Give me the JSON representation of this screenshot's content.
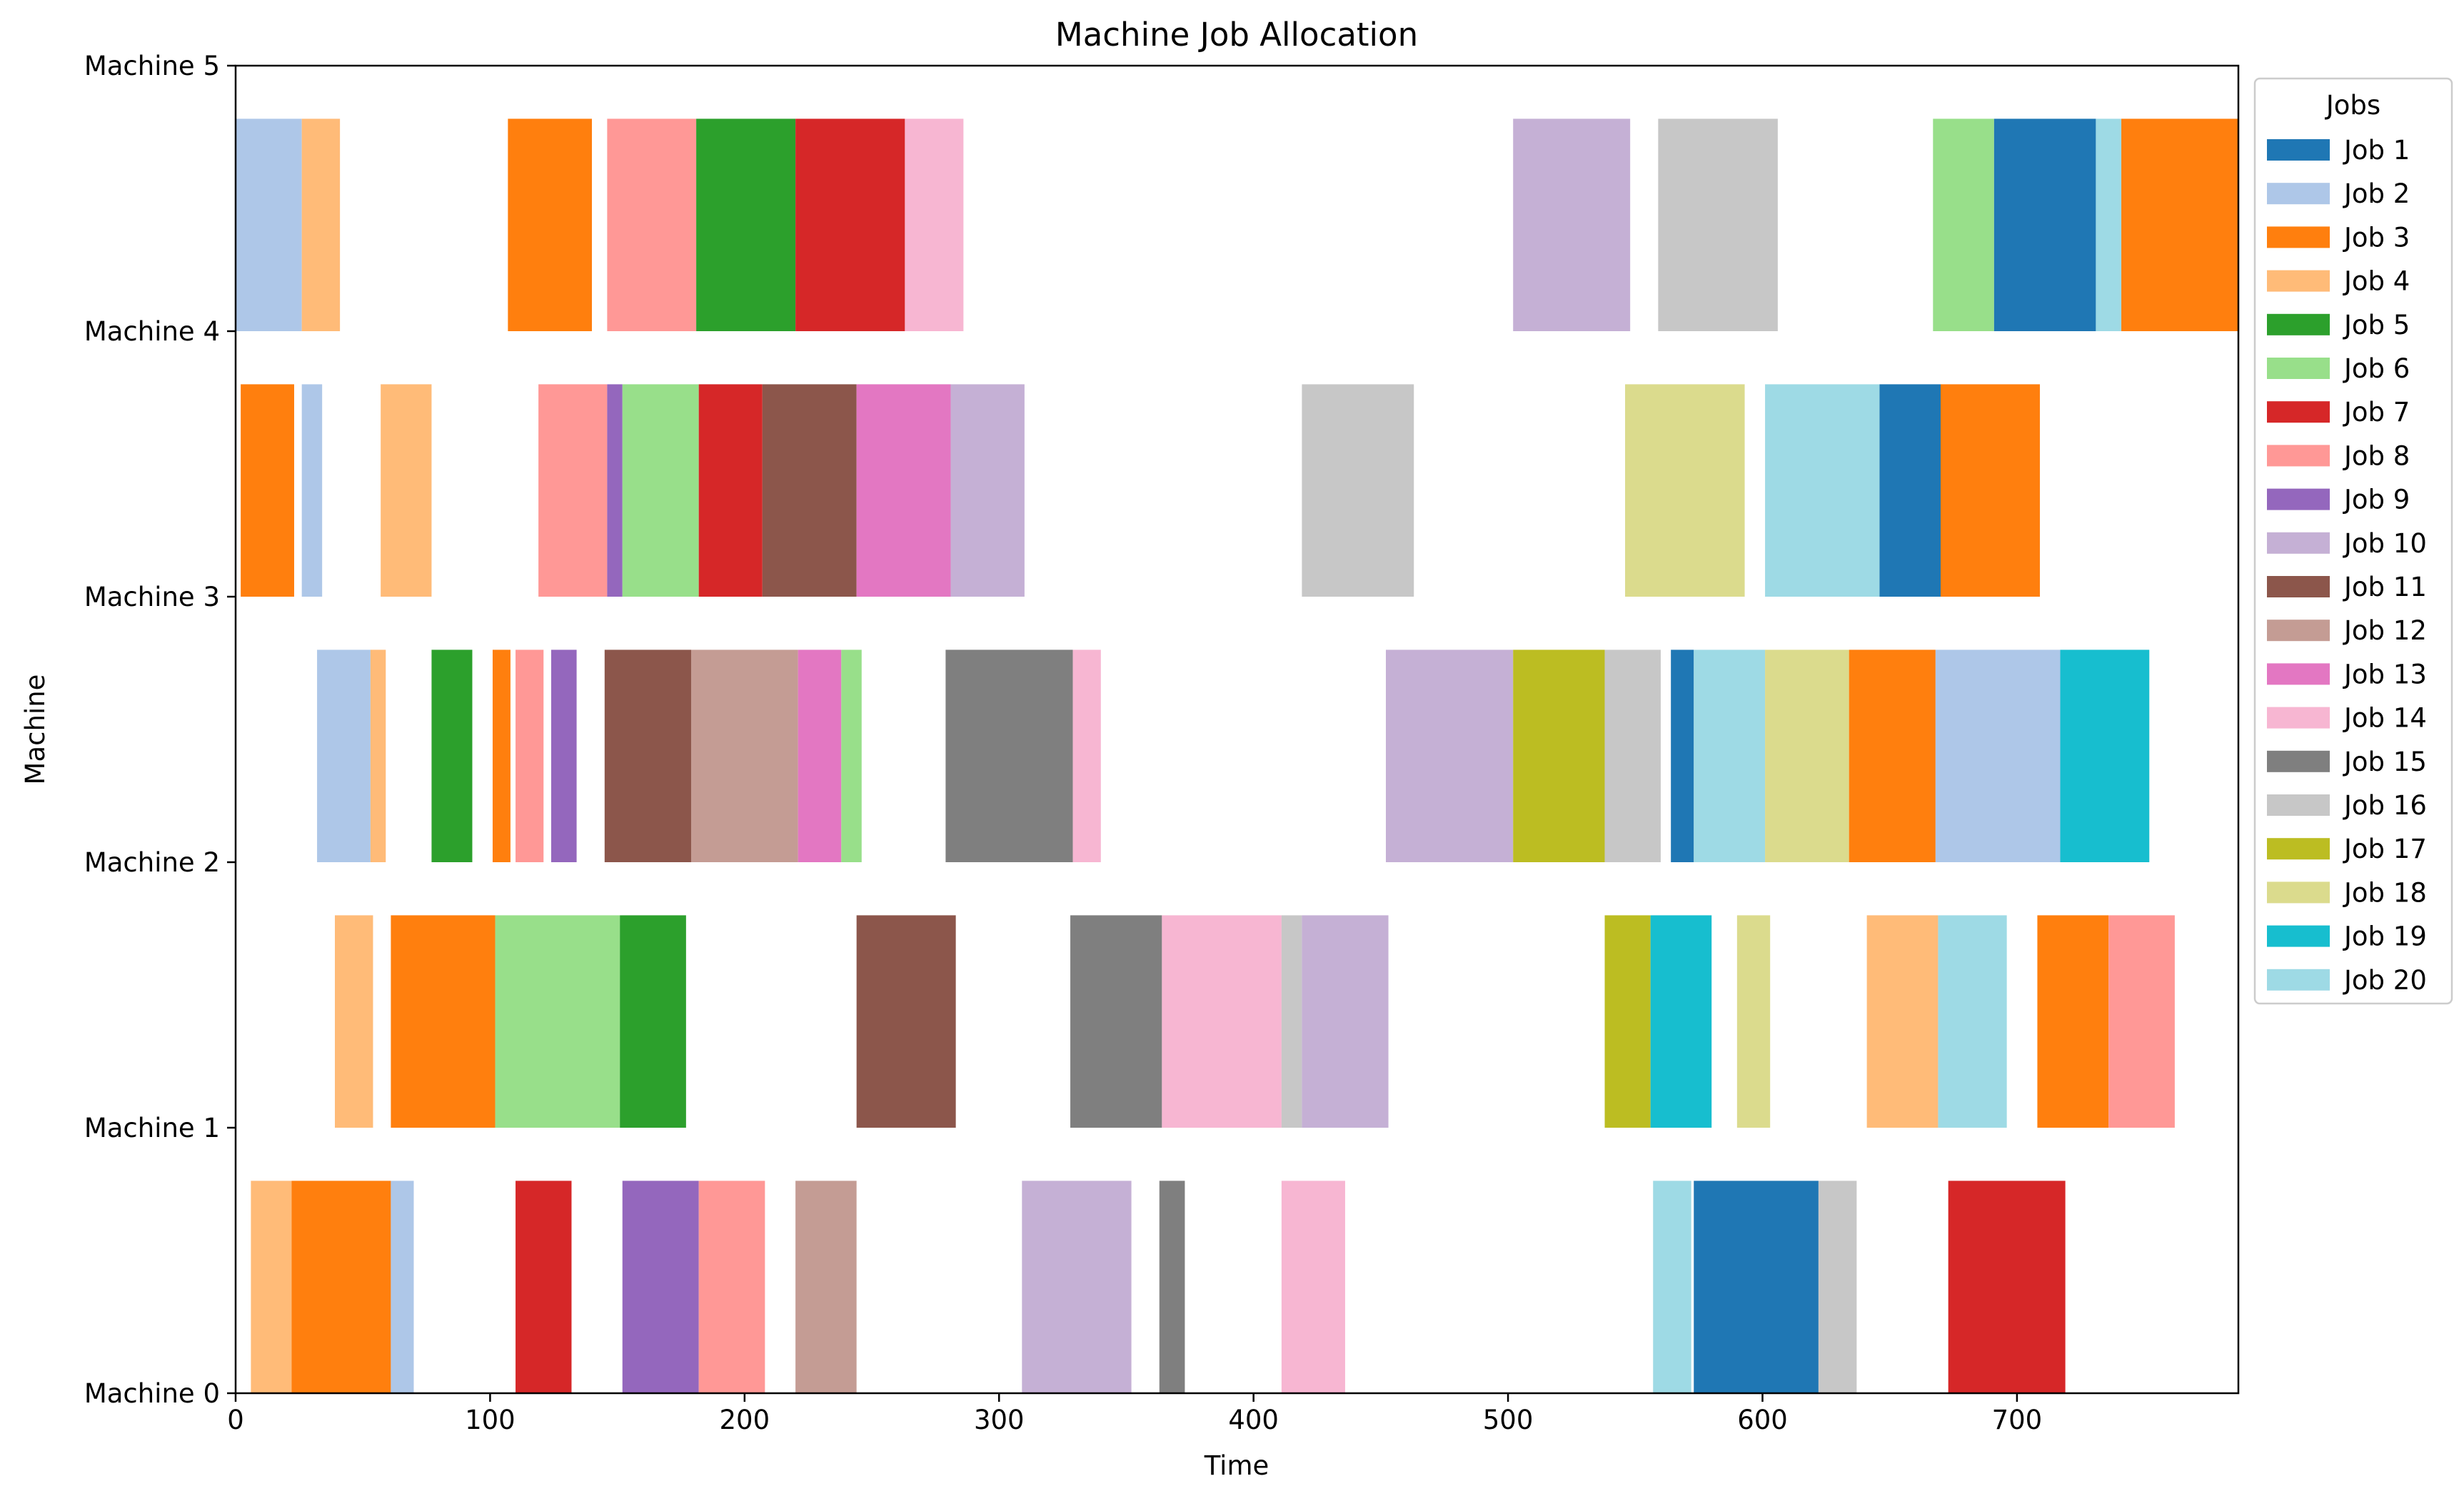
{
  "chart_data": {
    "type": "gantt",
    "title": "Machine Job Allocation",
    "xlabel": "Time",
    "ylabel": "Machine",
    "xlim": [
      0,
      787
    ],
    "ylim": [
      0,
      5
    ],
    "x_ticks": [
      0,
      100,
      200,
      300,
      400,
      500,
      600,
      700
    ],
    "y_ticks": [
      {
        "value": 0,
        "label": "Machine 0"
      },
      {
        "value": 1,
        "label": "Machine 1"
      },
      {
        "value": 2,
        "label": "Machine 2"
      },
      {
        "value": 3,
        "label": "Machine 3"
      },
      {
        "value": 4,
        "label": "Machine 4"
      },
      {
        "value": 5,
        "label": "Machine 5"
      }
    ],
    "grid": false,
    "legend": {
      "title": "Jobs",
      "placement": "outside-right-top"
    },
    "jobs": [
      {
        "id": 1,
        "name": "Job 1",
        "color": "#1f77b4"
      },
      {
        "id": 2,
        "name": "Job 2",
        "color": "#aec7e8"
      },
      {
        "id": 3,
        "name": "Job 3",
        "color": "#ff7f0e"
      },
      {
        "id": 4,
        "name": "Job 4",
        "color": "#ffbb78"
      },
      {
        "id": 5,
        "name": "Job 5",
        "color": "#2ca02c"
      },
      {
        "id": 6,
        "name": "Job 6",
        "color": "#98df8a"
      },
      {
        "id": 7,
        "name": "Job 7",
        "color": "#d62728"
      },
      {
        "id": 8,
        "name": "Job 8",
        "color": "#ff9896"
      },
      {
        "id": 9,
        "name": "Job 9",
        "color": "#9467bd"
      },
      {
        "id": 10,
        "name": "Job 10",
        "color": "#c5b0d5"
      },
      {
        "id": 11,
        "name": "Job 11",
        "color": "#8c564b"
      },
      {
        "id": 12,
        "name": "Job 12",
        "color": "#c49c94"
      },
      {
        "id": 13,
        "name": "Job 13",
        "color": "#e377c2"
      },
      {
        "id": 14,
        "name": "Job 14",
        "color": "#f7b6d2"
      },
      {
        "id": 15,
        "name": "Job 15",
        "color": "#7f7f7f"
      },
      {
        "id": 16,
        "name": "Job 16",
        "color": "#c7c7c7"
      },
      {
        "id": 17,
        "name": "Job 17",
        "color": "#bcbd22"
      },
      {
        "id": 18,
        "name": "Job 18",
        "color": "#dbdb8d"
      },
      {
        "id": 19,
        "name": "Job 19",
        "color": "#17becf"
      },
      {
        "id": 20,
        "name": "Job 20",
        "color": "#9edae5"
      }
    ],
    "machines": [
      {
        "machine": 0,
        "tasks": [
          {
            "job": 4,
            "start": 6,
            "end": 22
          },
          {
            "job": 3,
            "start": 22,
            "end": 61
          },
          {
            "job": 2,
            "start": 61,
            "end": 70
          },
          {
            "job": 7,
            "start": 110,
            "end": 132
          },
          {
            "job": 9,
            "start": 152,
            "end": 182
          },
          {
            "job": 8,
            "start": 182,
            "end": 208
          },
          {
            "job": 12,
            "start": 220,
            "end": 244
          },
          {
            "job": 10,
            "start": 309,
            "end": 352
          },
          {
            "job": 15,
            "start": 363,
            "end": 373
          },
          {
            "job": 14,
            "start": 411,
            "end": 436
          },
          {
            "job": 20,
            "start": 557,
            "end": 572
          },
          {
            "job": 1,
            "start": 573,
            "end": 622
          },
          {
            "job": 16,
            "start": 622,
            "end": 637
          },
          {
            "job": 7,
            "start": 673,
            "end": 719
          }
        ]
      },
      {
        "machine": 1,
        "tasks": [
          {
            "job": 4,
            "start": 39,
            "end": 54
          },
          {
            "job": 3,
            "start": 61,
            "end": 102
          },
          {
            "job": 6,
            "start": 102,
            "end": 151
          },
          {
            "job": 5,
            "start": 151,
            "end": 177
          },
          {
            "job": 11,
            "start": 244,
            "end": 283
          },
          {
            "job": 15,
            "start": 328,
            "end": 364
          },
          {
            "job": 14,
            "start": 364,
            "end": 411
          },
          {
            "job": 16,
            "start": 411,
            "end": 419
          },
          {
            "job": 10,
            "start": 419,
            "end": 453
          },
          {
            "job": 17,
            "start": 538,
            "end": 556
          },
          {
            "job": 19,
            "start": 556,
            "end": 580
          },
          {
            "job": 18,
            "start": 590,
            "end": 603
          },
          {
            "job": 4,
            "start": 641,
            "end": 669
          },
          {
            "job": 20,
            "start": 669,
            "end": 696
          },
          {
            "job": 3,
            "start": 708,
            "end": 736
          },
          {
            "job": 8,
            "start": 736,
            "end": 762
          }
        ]
      },
      {
        "machine": 2,
        "tasks": [
          {
            "job": 2,
            "start": 32,
            "end": 53
          },
          {
            "job": 4,
            "start": 53,
            "end": 59
          },
          {
            "job": 5,
            "start": 77,
            "end": 93
          },
          {
            "job": 3,
            "start": 101,
            "end": 108
          },
          {
            "job": 8,
            "start": 110,
            "end": 121
          },
          {
            "job": 9,
            "start": 124,
            "end": 134
          },
          {
            "job": 11,
            "start": 145,
            "end": 179
          },
          {
            "job": 12,
            "start": 179,
            "end": 221
          },
          {
            "job": 13,
            "start": 221,
            "end": 238
          },
          {
            "job": 6,
            "start": 238,
            "end": 246
          },
          {
            "job": 15,
            "start": 279,
            "end": 329
          },
          {
            "job": 14,
            "start": 329,
            "end": 340
          },
          {
            "job": 10,
            "start": 452,
            "end": 502
          },
          {
            "job": 17,
            "start": 502,
            "end": 538
          },
          {
            "job": 16,
            "start": 538,
            "end": 560
          },
          {
            "job": 1,
            "start": 564,
            "end": 573
          },
          {
            "job": 20,
            "start": 573,
            "end": 601
          },
          {
            "job": 18,
            "start": 601,
            "end": 634
          },
          {
            "job": 3,
            "start": 634,
            "end": 668
          },
          {
            "job": 2,
            "start": 668,
            "end": 717
          },
          {
            "job": 19,
            "start": 717,
            "end": 752
          }
        ]
      },
      {
        "machine": 3,
        "tasks": [
          {
            "job": 3,
            "start": 2,
            "end": 23
          },
          {
            "job": 2,
            "start": 26,
            "end": 34
          },
          {
            "job": 4,
            "start": 57,
            "end": 77
          },
          {
            "job": 8,
            "start": 119,
            "end": 146
          },
          {
            "job": 9,
            "start": 146,
            "end": 152
          },
          {
            "job": 6,
            "start": 152,
            "end": 182
          },
          {
            "job": 7,
            "start": 182,
            "end": 207
          },
          {
            "job": 11,
            "start": 207,
            "end": 244
          },
          {
            "job": 13,
            "start": 244,
            "end": 281
          },
          {
            "job": 10,
            "start": 281,
            "end": 310
          },
          {
            "job": 16,
            "start": 419,
            "end": 463
          },
          {
            "job": 18,
            "start": 546,
            "end": 593
          },
          {
            "job": 20,
            "start": 601,
            "end": 646
          },
          {
            "job": 1,
            "start": 646,
            "end": 670
          },
          {
            "job": 3,
            "start": 670,
            "end": 709
          }
        ]
      },
      {
        "machine": 4,
        "tasks": [
          {
            "job": 2,
            "start": 0,
            "end": 26
          },
          {
            "job": 4,
            "start": 26,
            "end": 41
          },
          {
            "job": 3,
            "start": 107,
            "end": 140
          },
          {
            "job": 8,
            "start": 146,
            "end": 181
          },
          {
            "job": 5,
            "start": 181,
            "end": 220
          },
          {
            "job": 7,
            "start": 220,
            "end": 263
          },
          {
            "job": 14,
            "start": 263,
            "end": 286
          },
          {
            "job": 10,
            "start": 502,
            "end": 548
          },
          {
            "job": 16,
            "start": 559,
            "end": 606
          },
          {
            "job": 6,
            "start": 667,
            "end": 691
          },
          {
            "job": 1,
            "start": 691,
            "end": 731
          },
          {
            "job": 20,
            "start": 731,
            "end": 741
          },
          {
            "job": 3,
            "start": 741,
            "end": 787
          }
        ]
      }
    ]
  }
}
